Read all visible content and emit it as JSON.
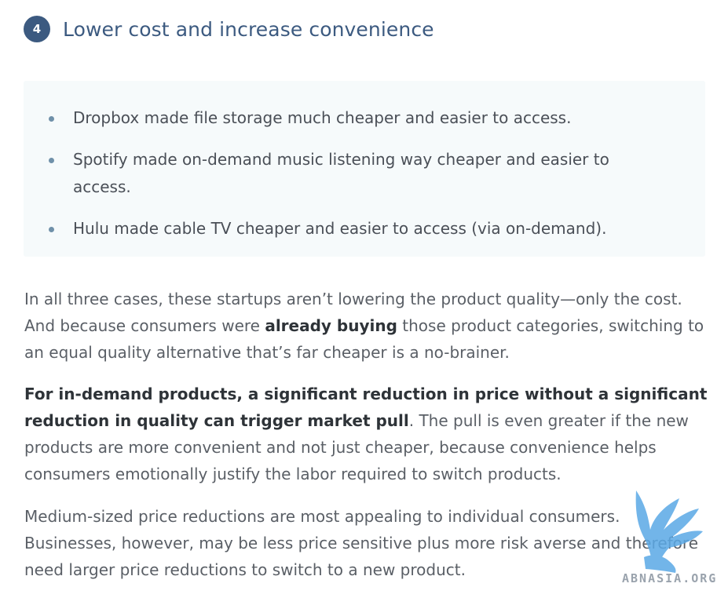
{
  "header": {
    "step_number": "4",
    "title": "Lower cost and increase convenience"
  },
  "callout": {
    "items": [
      {
        "text": "Dropbox made file storage much cheaper and easier to access."
      },
      {
        "text": "Spotify made on-demand music listening way cheaper and easier to access."
      },
      {
        "text": "Hulu made cable TV cheaper and easier to access (via on-demand)."
      }
    ]
  },
  "paragraphs": {
    "p1": {
      "part1": "In all three cases, these startups aren’t lowering the product quality—only the cost. And because consumers were ",
      "strong": "already buying",
      "part2": " those product categories, switching to an equal quality alternative that’s far cheaper is a no-brainer."
    },
    "p2": {
      "strong": "For in-demand products, a significant reduction in price without a significant reduction in quality can trigger market pull",
      "part2": ". The pull is even greater if the new products are more convenient and not just cheaper, because convenience helps consumers emotionally justify the labor required to switch products."
    },
    "p3": {
      "text": "Medium-sized price reductions are most appealing to individual consumers. Businesses, however, may be less price sensitive plus more risk averse and therefore need larger price reductions to switch to a new product."
    }
  },
  "watermark": {
    "text": "ABNASIA.ORG",
    "icon": "winged-lion-icon",
    "color": "#5aa9e6"
  },
  "colors": {
    "accent": "#3c5a80",
    "callout_bg": "#f6fafb",
    "body_text": "#5a5f66",
    "strong_text": "#2e3338"
  }
}
